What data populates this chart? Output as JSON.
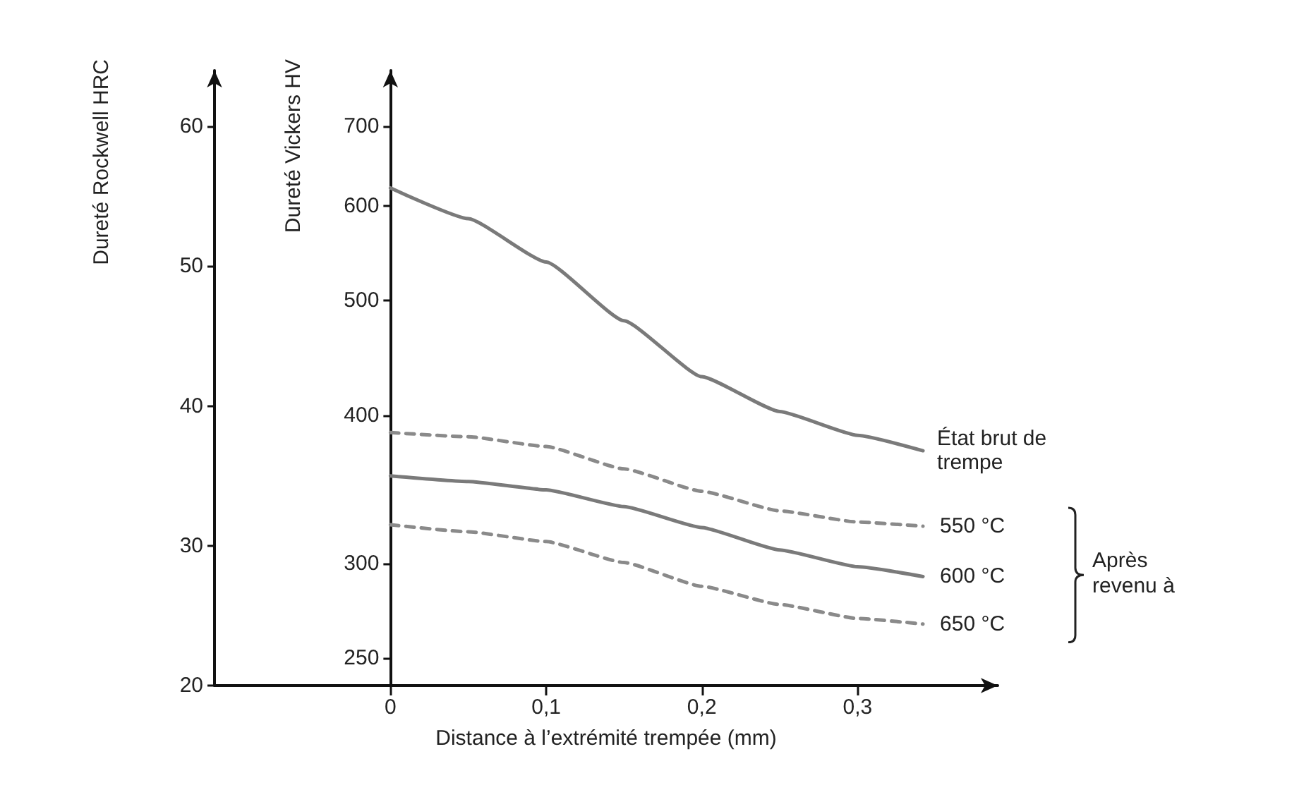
{
  "chart_data": {
    "type": "line",
    "xlabel": "Distance à l’extrémité trempée (mm)",
    "ylabel": "Dureté Rockwell HRC",
    "y2label": "Dureté Vickers HV",
    "x": [
      0,
      0.05,
      0.1,
      0.15,
      0.2,
      0.25,
      0.3,
      0.342
    ],
    "series": [
      {
        "name": "État brut de trempe",
        "color": "#7a7a7a",
        "line_style": "solid",
        "values": [
          55.6,
          53.4,
          50.3,
          46.1,
          42.1,
          39.6,
          37.9,
          36.8
        ]
      },
      {
        "name": "550 °C",
        "color": "#8a8a8a",
        "line_style": "dashed",
        "values": [
          38.1,
          37.8,
          37.1,
          35.5,
          33.9,
          32.5,
          31.7,
          31.4
        ]
      },
      {
        "name": "600 °C",
        "color": "#7a7a7a",
        "line_style": "solid",
        "values": [
          35.0,
          34.6,
          34.0,
          32.8,
          31.3,
          29.7,
          28.5,
          27.8
        ]
      },
      {
        "name": "650 °C",
        "color": "#8a8a8a",
        "line_style": "dashed",
        "values": [
          31.5,
          31.0,
          30.3,
          28.8,
          27.1,
          25.8,
          24.8,
          24.4
        ]
      }
    ],
    "annotations": [
      "Après revenu à"
    ],
    "xlim": [
      -0.113,
      0.39
    ],
    "xticks": [
      0,
      {
        "value": 0.1,
        "label": "0,1"
      },
      {
        "value": 0.2,
        "label": "0,2"
      },
      {
        "value": 0.3,
        "label": "0,3"
      }
    ],
    "ylim": [
      20,
      64
    ],
    "yticks": [
      20,
      30,
      40,
      50,
      60
    ],
    "y2lim": [
      237,
      780
    ],
    "y2ticks": [
      250,
      300,
      400,
      500,
      600,
      700
    ],
    "log": "y2",
    "grid": false,
    "legend": false,
    "marker": "none"
  }
}
